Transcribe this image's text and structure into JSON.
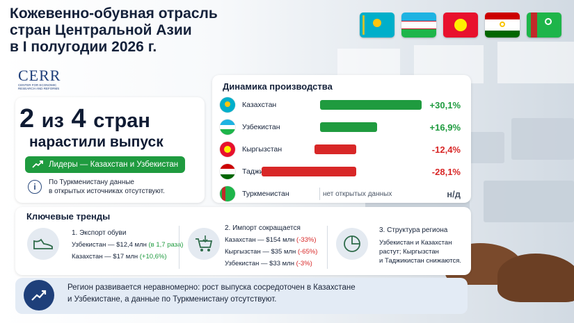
{
  "header": {
    "title_lines": [
      "Кожевенно-обувная отрасль",
      "стран Центральной Азии",
      "в I полугодии 2026 г."
    ]
  },
  "logo": {
    "text": "CERR",
    "tagline": "CENTER FOR ECONOMIC RESEARCH AND REFORMS"
  },
  "headline": {
    "n1": "2",
    "mid": "из",
    "n2": "4",
    "tail": "стран",
    "subtitle": "нарастили выпуск",
    "leaders": "Лидеры — Казахстан и Узбекистан",
    "note_line1": "По Туркменистану данные",
    "note_line2": "в открытых источниках отсутствуют."
  },
  "dynamics": {
    "title": "Динамика производства",
    "rows": [
      {
        "country": "Казахстан",
        "value": "+30,1%",
        "pct": 30.1,
        "color": "#1f9b3f"
      },
      {
        "country": "Узбекистан",
        "value": "+16,9%",
        "pct": 16.9,
        "color": "#1f9b3f"
      },
      {
        "country": "Кыргызстан",
        "value": "-12,4%",
        "pct": -12.4,
        "color": "#d82727"
      },
      {
        "country": "Таджикистан",
        "value": "-28,1%",
        "pct": -28.1,
        "color": "#d82727"
      },
      {
        "country": "Туркменистан",
        "value": "н/д",
        "na_text": "нет открытых данных"
      }
    ]
  },
  "trends": {
    "title": "Ключевые тренды",
    "t1": {
      "head": "1. Экспорт обуви",
      "l1": "Узбекистан — $12,4 млн",
      "l1b": "(в 1,7 раза)",
      "l2": "Казахстан — $17 млн",
      "l2b": "(+10,6%)"
    },
    "t2": {
      "head": "2. Импорт сокращается",
      "l1": "Казахстан — $154 млн",
      "l1b": "(-33%)",
      "l2": "Кыргызстан — $35 млн",
      "l2b": "(-65%)",
      "l3": "Узбекистан — $33 млн",
      "l3b": "(-3%)"
    },
    "t3": {
      "head": "3. Структура региона",
      "l1": "Узбекистан и Казахстан",
      "l2": "растут; Кыргызстан",
      "l3": "и Таджикистан снижаются."
    }
  },
  "conclusion": {
    "line1": "Регион развивается неравномерно: рост выпуска сосредоточен в Казахстане",
    "line2": "и Узбекистане, а данные по Туркменистану отсутствуют."
  }
}
